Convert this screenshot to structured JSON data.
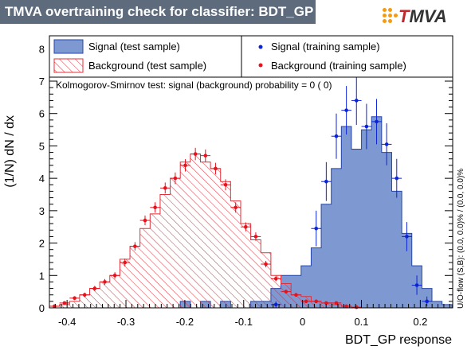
{
  "title": "TMVA overtraining check for classifier: BDT_GP",
  "logo": {
    "prefix": "T",
    "suffix": "MVA",
    "accent": "#c0282e"
  },
  "colors": {
    "signal_fill": "#7e99d2",
    "signal_line": "#2645a4",
    "background_hatch": "#e0303a",
    "signal_marker": "#0b23d8",
    "background_marker": "#e8121c",
    "title_bar": "#5d6b7d"
  },
  "legend": {
    "signal_test": "Signal (test sample)",
    "signal_train": "Signal (training sample)",
    "background_test": "Background (test sample)",
    "background_train": "Background (training sample)"
  },
  "ks_text": "Kolmogorov-Smirnov test: signal (background) probability =    0 (    0)",
  "side_text": "U/O-flow (S,B): (0.0, 0.0)% / (0.0, 0.0)%",
  "chart_data": {
    "type": "histogram",
    "xlabel": "BDT_GP response",
    "ylabel": "(1/N) dN / dx",
    "xlim": [
      -0.43,
      0.255
    ],
    "ylim": [
      0,
      8.4
    ],
    "x_ticks": [
      "-0.4",
      "-0.3",
      "-0.2",
      "-0.1",
      "0",
      "0.1",
      "0.2"
    ],
    "x_tick_values": [
      -0.4,
      -0.3,
      -0.2,
      -0.1,
      0,
      0.1,
      0.2
    ],
    "y_ticks": [
      "0",
      "1",
      "2",
      "3",
      "4",
      "5",
      "6",
      "7",
      "8"
    ],
    "bin_start": -0.43,
    "bin_width": 0.0171,
    "signal_test": [
      0,
      0,
      0,
      0,
      0,
      0,
      0,
      0,
      0,
      0,
      0,
      0,
      0,
      0.2,
      0,
      0.2,
      0,
      0.2,
      0,
      0,
      0.2,
      0.2,
      0.6,
      1,
      1,
      1.3,
      1.85,
      3.2,
      4.3,
      5.6,
      4.9,
      5.5,
      5.9,
      4.8,
      3.6,
      2.3,
      1.3,
      0.6,
      0.2,
      0.1
    ],
    "signal_train": [
      null,
      null,
      null,
      null,
      null,
      null,
      null,
      null,
      null,
      null,
      null,
      null,
      null,
      null,
      null,
      null,
      null,
      null,
      null,
      null,
      null,
      null,
      0.1,
      null,
      null,
      null,
      2.45,
      3.9,
      5.3,
      6.1,
      6.4,
      5.6,
      5.75,
      5.05,
      4.0,
      2.2,
      0.7,
      0.2,
      null,
      null
    ],
    "signal_train_err": [
      0,
      0,
      0,
      0,
      0,
      0,
      0,
      0,
      0,
      0,
      0,
      0,
      0,
      0,
      0,
      0,
      0,
      0,
      0,
      0,
      0,
      0,
      0.1,
      0,
      0,
      0,
      0.55,
      0.6,
      0.7,
      0.75,
      0.75,
      0.7,
      0.7,
      0.65,
      0.6,
      0.45,
      0.3,
      0.15,
      0,
      0
    ],
    "background_test": [
      0.05,
      0.1,
      0.2,
      0.4,
      0.6,
      0.8,
      1.0,
      1.5,
      1.9,
      2.45,
      2.9,
      3.5,
      4.0,
      4.5,
      4.75,
      4.5,
      4.3,
      3.9,
      3.3,
      2.6,
      2.1,
      1.7,
      1.0,
      0.75,
      0.4,
      0.35,
      0.2,
      0.15,
      0.1,
      0.05,
      0,
      0,
      0,
      0,
      0,
      0,
      0,
      0,
      0,
      0
    ],
    "background_train": [
      0.05,
      0.15,
      0.3,
      0.4,
      0.6,
      0.8,
      1.0,
      1.4,
      1.9,
      2.7,
      3.1,
      3.7,
      4.0,
      4.4,
      4.75,
      4.7,
      4.3,
      3.8,
      3.1,
      2.5,
      2.2,
      1.35,
      0.9,
      0.5,
      0.4,
      0.2,
      0.2,
      0.15,
      0.15,
      0.05,
      0.02,
      null,
      null,
      null,
      null,
      null,
      null,
      null,
      null,
      null
    ],
    "background_train_err": [
      0.03,
      0.04,
      0.06,
      0.07,
      0.08,
      0.09,
      0.1,
      0.12,
      0.13,
      0.15,
      0.16,
      0.17,
      0.18,
      0.19,
      0.19,
      0.19,
      0.18,
      0.17,
      0.16,
      0.14,
      0.13,
      0.1,
      0.08,
      0.06,
      0.05,
      0.04,
      0.04,
      0.03,
      0.03,
      0.02,
      0.02,
      0,
      0,
      0,
      0,
      0,
      0,
      0,
      0,
      0
    ]
  }
}
